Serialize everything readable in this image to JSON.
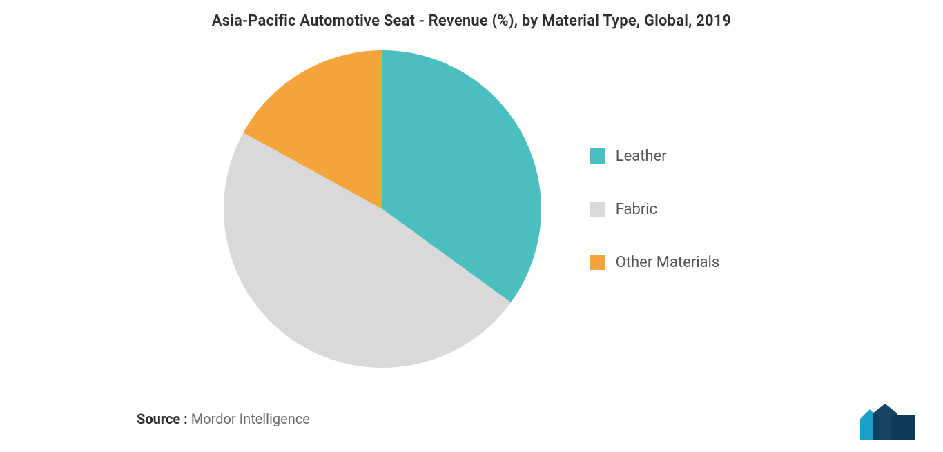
{
  "chart": {
    "title": "Asia-Pacific Automotive Seat - Revenue (%), by Material Type, Global, 2019",
    "type": "pie",
    "radius": 230,
    "background_color": "#ffffff",
    "start_angle_deg": 0,
    "slices": [
      {
        "label": "Leather",
        "value": 35,
        "color": "#4bbfbf"
      },
      {
        "label": "Fabric",
        "value": 48,
        "color": "#d9d9d9"
      },
      {
        "label": "Other Materials",
        "value": 17,
        "color": "#f5a33d"
      }
    ],
    "title_fontsize": 22,
    "title_color": "#2d2d2d",
    "legend": {
      "position": "right",
      "fontsize": 22,
      "text_color": "#555555",
      "swatch_size": 22
    }
  },
  "source": {
    "label": "Source :",
    "value": "Mordor Intelligence",
    "fontsize": 20,
    "label_color": "#2d2d2d",
    "value_color": "#6b6b6b"
  },
  "logo": {
    "colors": {
      "primary": "#0c3a5b",
      "accent": "#1aa0c9"
    }
  }
}
